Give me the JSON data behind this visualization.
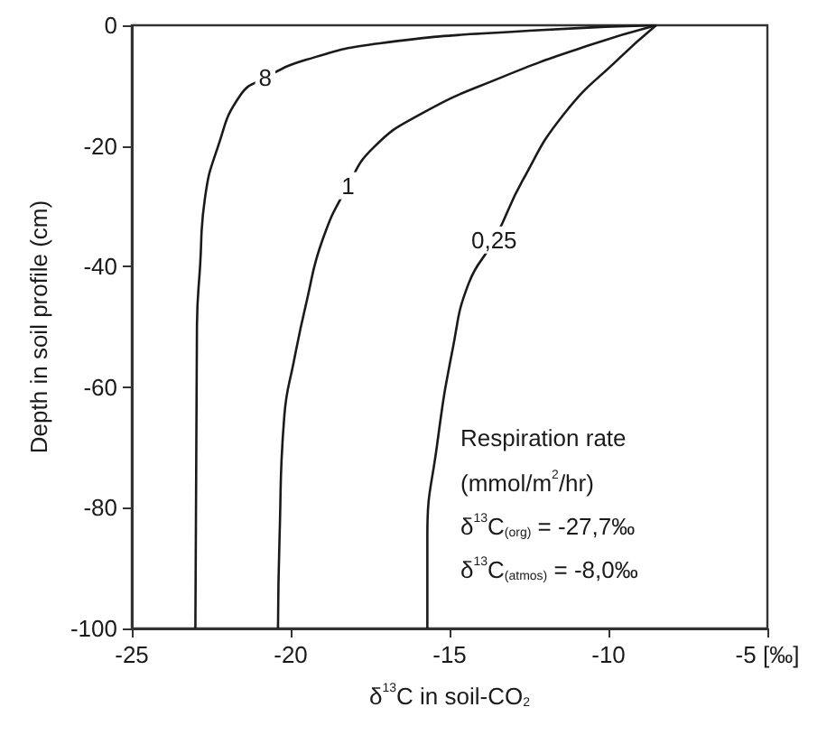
{
  "chart_data": {
    "type": "line",
    "xlabel": "δ$^{13}$C in soil-CO$_{2}$",
    "ylabel": "Depth in soil profile (cm)",
    "legend_title": "Respiration rate (mmol/m$^{2}$/hr)",
    "annotations": [
      "δ$^{13}$C$_{(org)}$ = -27,7‰",
      "δ$^{13}$C$_{(atmos)}$ = -8,0‰"
    ],
    "xlim": [
      -25,
      -5
    ],
    "xticks": [
      -25,
      -20,
      -15,
      -10,
      {
        "value": -5,
        "label": "-5 [‰]"
      }
    ],
    "ylim": [
      -100,
      0
    ],
    "yticks": [
      -100,
      -80,
      -60,
      -40,
      -20,
      0
    ],
    "grid": false,
    "legend": false,
    "marker": "none",
    "line_style": "solid",
    "series": [
      {
        "name": "8",
        "color": "#1a1a1a",
        "x": [
          -8.5,
          -12.5,
          -17.2,
          -19.5,
          -20.8,
          -21.6,
          -22.3,
          -22.7,
          -22.85,
          -22.95,
          -23.0
        ],
        "values": [
          0,
          -0.9,
          -3,
          -5.7,
          -8.7,
          -11.7,
          -20.3,
          -28.7,
          -39.8,
          -49.7,
          -100
        ]
      },
      {
        "name": "1",
        "color": "#1a1a1a",
        "x": [
          -8.5,
          -10.6,
          -13.4,
          -15.9,
          -17.4,
          -18.2,
          -19.0,
          -19.5,
          -19.9,
          -20.2,
          -20.35,
          -20.4
        ],
        "values": [
          0,
          -3.3,
          -8.7,
          -14.7,
          -20.3,
          -26.6,
          -35.6,
          -45.8,
          -55.7,
          -64.7,
          -84.7,
          -100
        ]
      },
      {
        "name": "0,25",
        "color": "#1a1a1a",
        "x": [
          -8.5,
          -9.65,
          -11.4,
          -12.7,
          -13.6,
          -14.4,
          -14.9,
          -15.4,
          -15.7,
          -15.7
        ],
        "values": [
          0,
          -5.4,
          -14.7,
          -25.7,
          -35.6,
          -42.8,
          -53.6,
          -69.8,
          -84.7,
          -100
        ]
      }
    ]
  }
}
